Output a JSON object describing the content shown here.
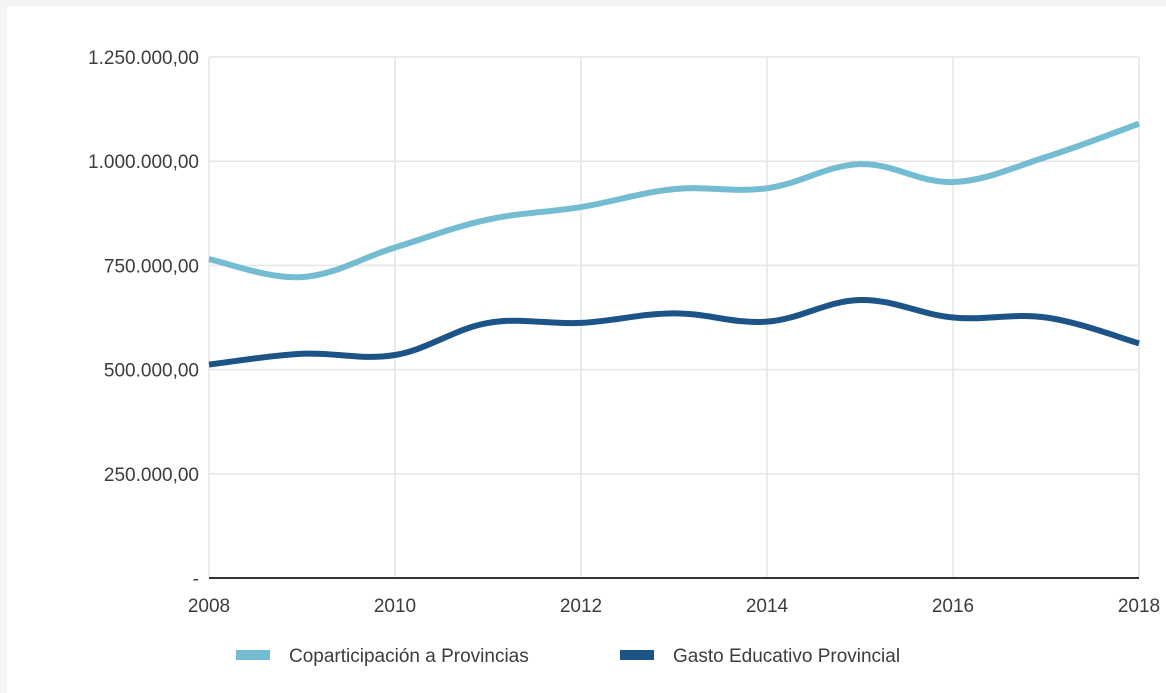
{
  "chart_data": {
    "type": "line",
    "title": "",
    "xlabel": "",
    "ylabel": "",
    "x": [
      2008,
      2009,
      2010,
      2011,
      2012,
      2013,
      2014,
      2015,
      2016,
      2017,
      2018
    ],
    "x_ticks": [
      "2008",
      "2010",
      "2012",
      "2014",
      "2016",
      "2018"
    ],
    "y_ticks": [
      "-",
      "250.000,00",
      "500.000,00",
      "750.000,00",
      "1.000.000,00",
      "1.250.000,00"
    ],
    "ylim": [
      0,
      1250000
    ],
    "xlim": [
      2008,
      2018
    ],
    "grid": true,
    "legend_position": "bottom",
    "series": [
      {
        "name": "Coparticipación a Provincias",
        "color": "#74bcd1",
        "values": [
          765000,
          722000,
          793000,
          860000,
          890000,
          933000,
          935000,
          993000,
          950000,
          1010000,
          1090000
        ]
      },
      {
        "name": "Gasto Educativo Provincial",
        "color": "#1c5487",
        "values": [
          512000,
          538000,
          535000,
          612000,
          612000,
          635000,
          615000,
          667000,
          625000,
          625000,
          563000
        ]
      }
    ]
  }
}
